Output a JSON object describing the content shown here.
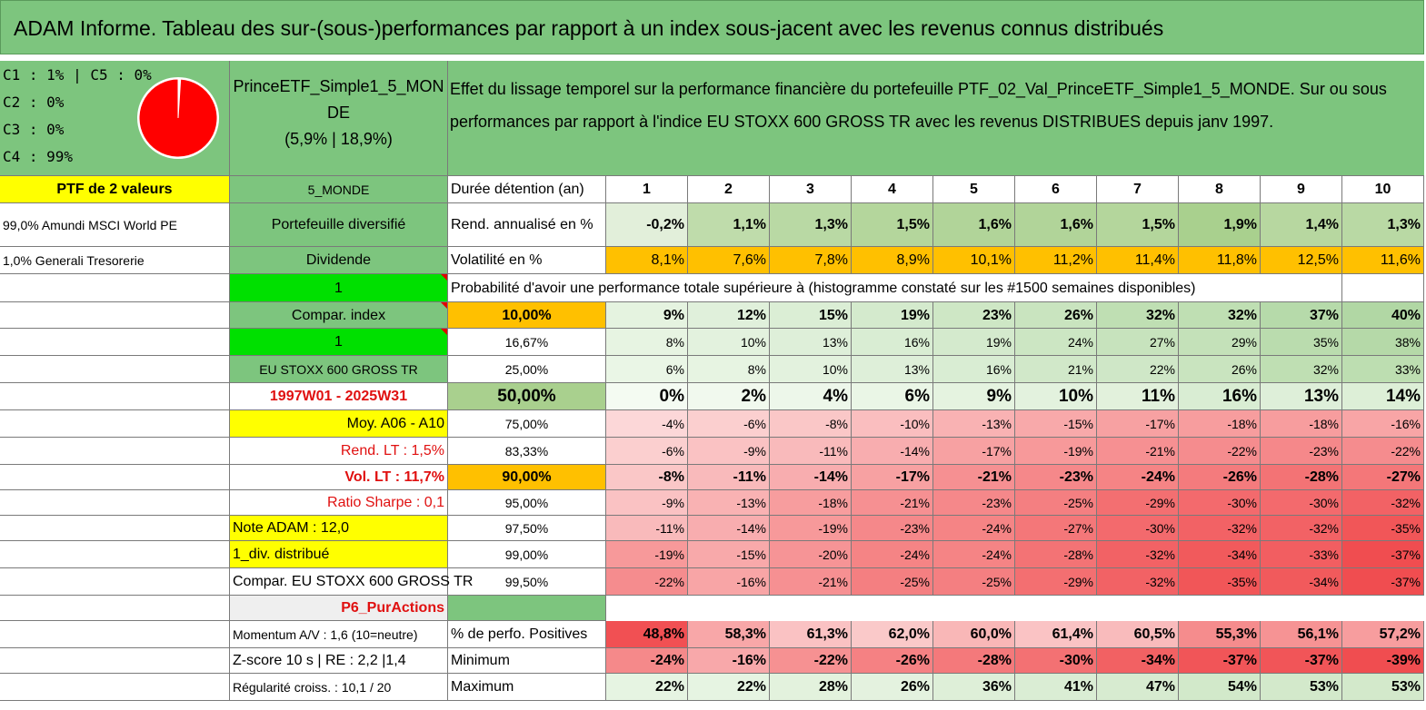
{
  "title": "ADAM Informe. Tableau des sur-(sous-)performances par rapport à un index sous-jacent avec les revenus connus distribués",
  "legend": [
    "C1 : 1% | C5 : 0%",
    "C2 : 0%",
    "C3 : 0%",
    "C4 : 99%"
  ],
  "pie": {
    "slices": [
      {
        "label": "C1",
        "value": 1,
        "color": "#ffffff"
      },
      {
        "label": "C4",
        "value": 99,
        "color": "#ff0000"
      }
    ]
  },
  "fund": {
    "name_line1": "PrinceETF_Simple1_5_MON",
    "name_line2": "DE",
    "stats": "(5,9% | 18,9%)"
  },
  "description": "Effet du lissage temporel sur la performance financière du portefeuille PTF_02_Val_PrinceETF_Simple1_5_MONDE. Sur ou sous performances par rapport à l'indice EU STOXX 600 GROSS TR avec les revenus DISTRIBUES depuis janv 1997.",
  "col1": [
    "PTF de 2 valeurs",
    "99,0% Amundi MSCI World PE",
    "1,0% Generali Tresorerie"
  ],
  "col2": [
    "5_MONDE",
    "Portefeuille diversifié",
    "Dividende",
    "1",
    "Compar. index",
    "1",
    "EU STOXX 600 GROSS TR",
    "1997W01 - 2025W31",
    "Moy. A06 - A10",
    "Rend. LT : 1,5%",
    "Vol. LT : 11,7%",
    "Ratio Sharpe : 0,1",
    "Note ADAM : 12,0",
    "1_div. distribué",
    "Compar. EU STOXX 600 GROSS TR",
    "P6_PurActions",
    "Momentum A/V : 1,6 (10=neutre)",
    "Z-score 10 s | RE : 2,2 |1,4",
    "Régularité croiss. : 10,1 / 20"
  ],
  "labels": {
    "duration": "Durée détention (an)",
    "rend": "Rend. annualisé en %",
    "vol": "Volatilité en %",
    "prob": "Probabilité d'avoir une performance totale supérieure à (histogramme constaté sur les #1500 semaines disponibles)",
    "pos": "% de perfo. Positives",
    "min": "Minimum",
    "max": "Maximum"
  },
  "years": [
    "1",
    "2",
    "3",
    "4",
    "5",
    "6",
    "7",
    "8",
    "9",
    "10"
  ],
  "rend": [
    "-0,2%",
    "1,1%",
    "1,3%",
    "1,5%",
    "1,6%",
    "1,6%",
    "1,5%",
    "1,9%",
    "1,4%",
    "1,3%"
  ],
  "vol": [
    "8,1%",
    "7,6%",
    "7,8%",
    "8,9%",
    "10,1%",
    "11,2%",
    "11,4%",
    "11,8%",
    "12,5%",
    "11,6%"
  ],
  "prob_rows": [
    {
      "p": "10,00%",
      "v": [
        "9%",
        "12%",
        "15%",
        "19%",
        "23%",
        "26%",
        "32%",
        "32%",
        "37%",
        "40%"
      ]
    },
    {
      "p": "16,67%",
      "v": [
        "8%",
        "10%",
        "13%",
        "16%",
        "19%",
        "24%",
        "27%",
        "29%",
        "35%",
        "38%"
      ]
    },
    {
      "p": "25,00%",
      "v": [
        "6%",
        "8%",
        "10%",
        "13%",
        "16%",
        "21%",
        "22%",
        "26%",
        "32%",
        "33%"
      ]
    },
    {
      "p": "50,00%",
      "v": [
        "0%",
        "2%",
        "4%",
        "6%",
        "9%",
        "10%",
        "11%",
        "16%",
        "13%",
        "14%"
      ]
    },
    {
      "p": "75,00%",
      "v": [
        "-4%",
        "-6%",
        "-8%",
        "-10%",
        "-13%",
        "-15%",
        "-17%",
        "-18%",
        "-18%",
        "-16%"
      ]
    },
    {
      "p": "83,33%",
      "v": [
        "-6%",
        "-9%",
        "-11%",
        "-14%",
        "-17%",
        "-19%",
        "-21%",
        "-22%",
        "-23%",
        "-22%"
      ]
    },
    {
      "p": "90,00%",
      "v": [
        "-8%",
        "-11%",
        "-14%",
        "-17%",
        "-21%",
        "-23%",
        "-24%",
        "-26%",
        "-28%",
        "-27%"
      ]
    },
    {
      "p": "95,00%",
      "v": [
        "-9%",
        "-13%",
        "-18%",
        "-21%",
        "-23%",
        "-25%",
        "-29%",
        "-30%",
        "-30%",
        "-32%"
      ]
    },
    {
      "p": "97,50%",
      "v": [
        "-11%",
        "-14%",
        "-19%",
        "-23%",
        "-24%",
        "-27%",
        "-30%",
        "-32%",
        "-32%",
        "-35%"
      ]
    },
    {
      "p": "99,00%",
      "v": [
        "-19%",
        "-15%",
        "-20%",
        "-24%",
        "-24%",
        "-28%",
        "-32%",
        "-34%",
        "-33%",
        "-37%"
      ]
    },
    {
      "p": "99,50%",
      "v": [
        "-22%",
        "-16%",
        "-21%",
        "-25%",
        "-25%",
        "-29%",
        "-32%",
        "-35%",
        "-34%",
        "-37%"
      ]
    }
  ],
  "pos": [
    "48,8%",
    "58,3%",
    "61,3%",
    "62,0%",
    "60,0%",
    "61,4%",
    "60,5%",
    "55,3%",
    "56,1%",
    "57,2%"
  ],
  "min": [
    "-24%",
    "-16%",
    "-22%",
    "-26%",
    "-28%",
    "-30%",
    "-34%",
    "-37%",
    "-37%",
    "-39%"
  ],
  "max": [
    "22%",
    "22%",
    "28%",
    "26%",
    "36%",
    "41%",
    "47%",
    "54%",
    "53%",
    "53%"
  ],
  "colors": {
    "header_green": "#7dc57e",
    "yellow": "#ffff00",
    "orange": "#ffc000",
    "bright_green": "#00e000",
    "negative_red": "#f8696b",
    "positive_green": "#63be7b"
  }
}
